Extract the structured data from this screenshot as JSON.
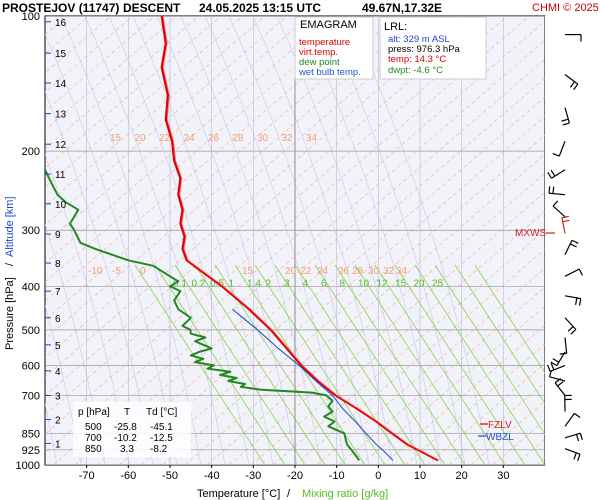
{
  "header": {
    "station": "PROSTEJOV (11747)",
    "mode": "DESCENT",
    "datetime": "24.05.2025 13:15 UTC",
    "coords": "49.67N,17.32E",
    "copyright": "CHMI © 2025"
  },
  "legend": {
    "title": "EMAGRAM",
    "items": [
      {
        "label": "temperature",
        "color": "#dd0000"
      },
      {
        "label": "virt.temp.",
        "color": "#dd0000"
      },
      {
        "label": "dew point",
        "color": "#228822"
      },
      {
        "label": "wet bulb temp.",
        "color": "#2255cc"
      }
    ]
  },
  "lrl": {
    "title": "LRL:",
    "alt": "alt: 329 m ASL",
    "press": "press: 976.3 hPa",
    "temp": "temp: 14.3 °C",
    "dwpt": "dwpt: -4.6 °C"
  },
  "levels_table": {
    "headers": [
      "p [hPa]",
      "T",
      "Td [°C]"
    ],
    "rows": [
      [
        "500",
        "-25.8",
        "-45.1"
      ],
      [
        "700",
        "-10.2",
        "-12.5"
      ],
      [
        "850",
        "3.3",
        "-8.2"
      ]
    ]
  },
  "markers": {
    "mxws": "MXWS",
    "fzlv": "FZLV",
    "wbzl": "WBZL"
  },
  "axes": {
    "xlabel_temp": "Temperature [°C]",
    "xlabel_sep": "/",
    "xlabel_mix": "Mixing ratio [g/kg]",
    "ylabel_pressure": "Pressure [hPa]",
    "ylabel_sep": "/",
    "ylabel_alt": "Altitude [km]"
  },
  "chart_data": {
    "type": "line",
    "title": "EMAGRAM",
    "xlabel": "Temperature [°C]",
    "ylabel": "Pressure [hPa]",
    "xlim": [
      -80,
      40
    ],
    "ylim": [
      1000,
      100
    ],
    "y_scale": "log",
    "x_ticks": [
      -70,
      -60,
      -50,
      -40,
      -30,
      -20,
      -10,
      0,
      10,
      20,
      30
    ],
    "y_ticks": [
      100,
      200,
      300,
      400,
      500,
      600,
      700,
      850,
      925,
      1000
    ],
    "altitude_ticks_km": [
      {
        "label": "1",
        "p": 895
      },
      {
        "label": "2",
        "p": 792
      },
      {
        "label": "3",
        "p": 700
      },
      {
        "label": "4",
        "p": 617
      },
      {
        "label": "5",
        "p": 540
      },
      {
        "label": "6",
        "p": 470
      },
      {
        "label": "7",
        "p": 410
      },
      {
        "label": "8",
        "p": 355
      },
      {
        "label": "9",
        "p": 306
      },
      {
        "label": "10",
        "p": 262
      },
      {
        "label": "11",
        "p": 225
      },
      {
        "label": "12",
        "p": 193
      },
      {
        "label": "13",
        "p": 165
      },
      {
        "label": "14",
        "p": 141
      },
      {
        "label": "15",
        "p": 121
      },
      {
        "label": "16",
        "p": 103
      }
    ],
    "mixing_ratio_labels": [
      "0.1",
      "0.2",
      "0.5",
      "1",
      "1.4",
      "2",
      "3",
      "4",
      "6",
      "8",
      "10",
      "12",
      "15",
      "20",
      "25"
    ],
    "upper_orange_labels": [
      "15",
      "20",
      "22",
      "24",
      "26",
      "28",
      "30",
      "32",
      "34"
    ],
    "lower_orange_labels": [
      "-10",
      "-5",
      "0",
      "15",
      "20",
      "22",
      "24",
      "26",
      "28",
      "30",
      "32",
      "34"
    ],
    "series": [
      {
        "name": "temperature",
        "color": "#dd0000",
        "points": [
          [
            976,
            14.3
          ],
          [
            925,
            9.5
          ],
          [
            900,
            7.0
          ],
          [
            850,
            3.3
          ],
          [
            800,
            -0.5
          ],
          [
            750,
            -5.0
          ],
          [
            700,
            -10.2
          ],
          [
            650,
            -14.5
          ],
          [
            600,
            -18.5
          ],
          [
            550,
            -22.0
          ],
          [
            500,
            -25.8
          ],
          [
            450,
            -31.0
          ],
          [
            400,
            -37.5
          ],
          [
            370,
            -42.5
          ],
          [
            350,
            -46.0
          ],
          [
            330,
            -47.0
          ],
          [
            310,
            -46.5
          ],
          [
            290,
            -47.5
          ],
          [
            270,
            -47.0
          ],
          [
            250,
            -48.0
          ],
          [
            230,
            -47.5
          ],
          [
            210,
            -49.0
          ],
          [
            190,
            -49.5
          ],
          [
            170,
            -51.0
          ],
          [
            150,
            -50.5
          ],
          [
            130,
            -52.0
          ],
          [
            115,
            -51.0
          ],
          [
            100,
            -52.0
          ]
        ]
      },
      {
        "name": "dew point",
        "color": "#228822",
        "points": [
          [
            976,
            -4.6
          ],
          [
            950,
            -5.5
          ],
          [
            925,
            -6.5
          ],
          [
            900,
            -7.5
          ],
          [
            850,
            -8.2
          ],
          [
            820,
            -12.0
          ],
          [
            800,
            -10.5
          ],
          [
            780,
            -13.0
          ],
          [
            760,
            -11.0
          ],
          [
            740,
            -12.0
          ],
          [
            720,
            -11.0
          ],
          [
            700,
            -12.5
          ],
          [
            690,
            -16.0
          ],
          [
            680,
            -28.0
          ],
          [
            670,
            -33.0
          ],
          [
            660,
            -32.0
          ],
          [
            650,
            -36.0
          ],
          [
            640,
            -34.0
          ],
          [
            630,
            -38.0
          ],
          [
            620,
            -35.5
          ],
          [
            610,
            -41.0
          ],
          [
            600,
            -39.5
          ],
          [
            590,
            -44.0
          ],
          [
            580,
            -42.0
          ],
          [
            570,
            -45.0
          ],
          [
            560,
            -43.0
          ],
          [
            550,
            -40.0
          ],
          [
            540,
            -42.0
          ],
          [
            530,
            -44.0
          ],
          [
            520,
            -41.5
          ],
          [
            510,
            -45.0
          ],
          [
            500,
            -45.1
          ],
          [
            490,
            -47.0
          ],
          [
            470,
            -45.0
          ],
          [
            450,
            -48.0
          ],
          [
            430,
            -49.0
          ],
          [
            410,
            -47.5
          ],
          [
            400,
            -50.0
          ],
          [
            390,
            -48.0
          ],
          [
            375,
            -51.0
          ],
          [
            360,
            -54.0
          ],
          [
            350,
            -60.0
          ],
          [
            340,
            -64.0
          ],
          [
            330,
            -68.0
          ],
          [
            320,
            -71.5
          ],
          [
            300,
            -73.0
          ],
          [
            290,
            -74.0
          ],
          [
            270,
            -72.0
          ],
          [
            260,
            -75.0
          ],
          [
            250,
            -77.0
          ],
          [
            240,
            -78.0
          ],
          [
            230,
            -79.0
          ],
          [
            220,
            -80.0
          ]
        ]
      },
      {
        "name": "wet bulb temp.",
        "color": "#2255cc",
        "points": [
          [
            976,
            3.5
          ],
          [
            925,
            1.0
          ],
          [
            900,
            -0.5
          ],
          [
            850,
            -3.0
          ],
          [
            800,
            -5.5
          ],
          [
            750,
            -8.5
          ],
          [
            700,
            -11.0
          ],
          [
            650,
            -15.0
          ],
          [
            600,
            -19.0
          ],
          [
            550,
            -24.0
          ],
          [
            500,
            -29.0
          ],
          [
            450,
            -35.0
          ]
        ]
      }
    ],
    "grid": true
  }
}
